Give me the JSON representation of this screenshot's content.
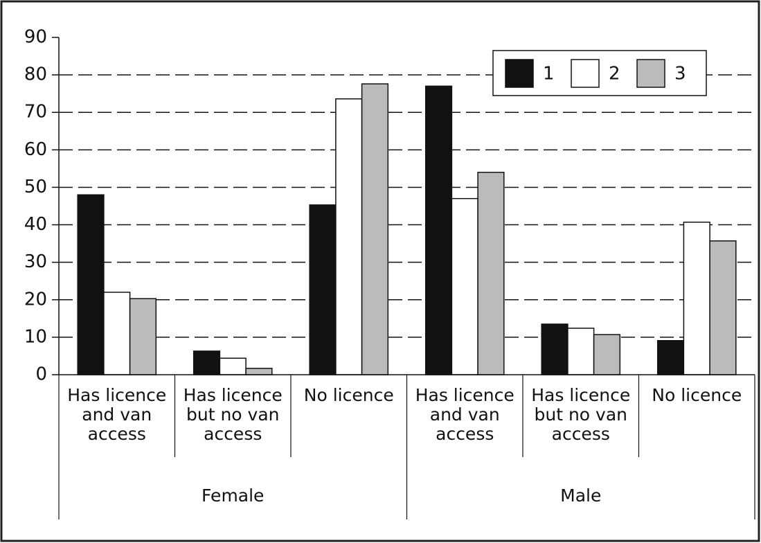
{
  "chart_data": {
    "type": "bar",
    "categories": [
      "Has licence and van access",
      "Has licence but no van access",
      "No licence",
      "Has licence and van access",
      "Has licence but no van access",
      "No licence"
    ],
    "groups": [
      "Female",
      "Male"
    ],
    "series": [
      {
        "name": "1",
        "color": "#111111",
        "values": [
          48,
          6.3,
          45.3,
          77,
          13.5,
          9.1
        ]
      },
      {
        "name": "2",
        "color": "#ffffff",
        "values": [
          22,
          4.4,
          73.6,
          47,
          12.4,
          40.7
        ]
      },
      {
        "name": "3",
        "color": "#bbbbbb",
        "values": [
          20.3,
          1.7,
          77.6,
          54,
          10.7,
          35.7
        ]
      }
    ],
    "ylim": [
      0,
      90
    ],
    "yticks": [
      0,
      10,
      20,
      30,
      40,
      50,
      60,
      70,
      80,
      90
    ],
    "grid": true,
    "legend": "upper right"
  }
}
